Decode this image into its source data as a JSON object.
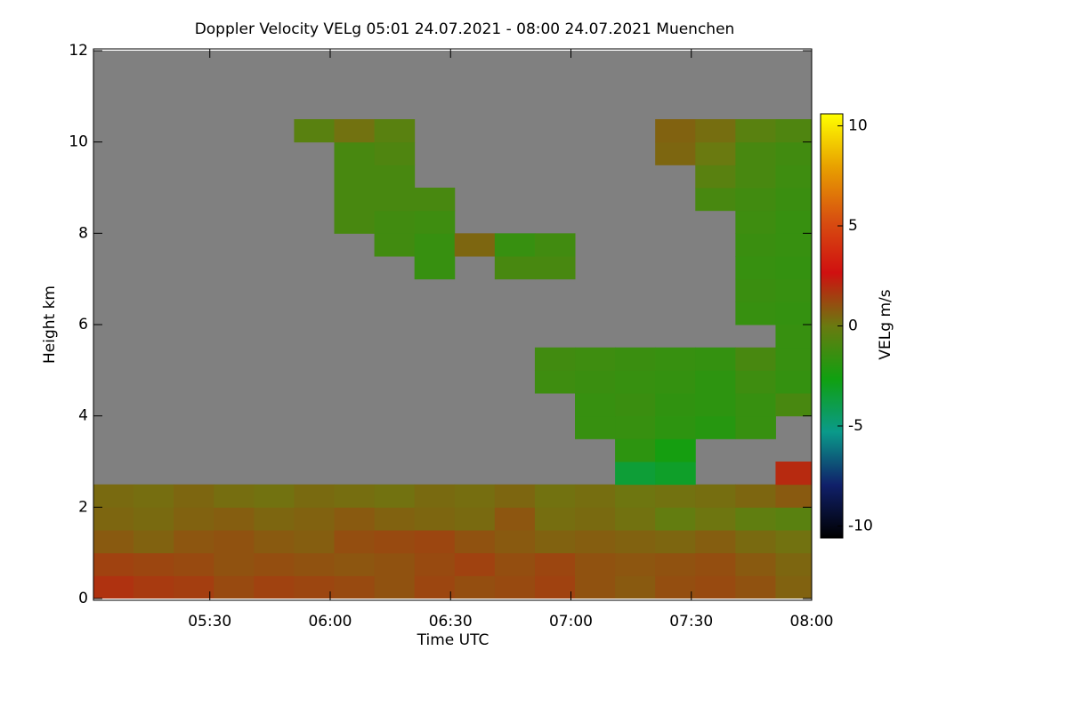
{
  "chart_data": {
    "type": "heatmap",
    "title": "Doppler Velocity VELg   05:01 24.07.2021 - 08:00 24.07.2021 Muenchen",
    "x_label": "Time UTC",
    "y_label": "Height km",
    "colorbar_label": "VELg m/s",
    "xlim": [
      301,
      480
    ],
    "xticks": [
      {
        "value": 330,
        "label": "05:30"
      },
      {
        "value": 360,
        "label": "06:00"
      },
      {
        "value": 390,
        "label": "06:30"
      },
      {
        "value": 420,
        "label": "07:00"
      },
      {
        "value": 450,
        "label": "07:30"
      },
      {
        "value": 480,
        "label": "08:00"
      }
    ],
    "ylim": [
      0,
      12
    ],
    "yticks": [
      0,
      2,
      4,
      6,
      8,
      10,
      12
    ],
    "zlim": [
      -10.6,
      10.6
    ],
    "zticks": [
      -10,
      -5,
      0,
      5,
      10
    ],
    "colormap": [
      "#000000",
      "#10206a",
      "#0a9a8a",
      "#10a010",
      "#6a7a10",
      "#d01010",
      "#d85010",
      "#e8a000",
      "#ffff00"
    ],
    "missing_color": "#808080",
    "x": [
      306,
      316,
      326,
      336,
      346,
      356,
      366,
      376,
      386,
      396,
      406,
      416,
      426,
      436,
      446,
      456,
      466,
      476
    ],
    "y": [
      0.25,
      0.75,
      1.25,
      1.75,
      2.25,
      2.75,
      3.25,
      3.75,
      4.25,
      4.75,
      5.25,
      5.75,
      6.25,
      6.75,
      7.25,
      7.75,
      8.25,
      8.75,
      9.25,
      9.75,
      10.25,
      10.75,
      11.25,
      11.75
    ],
    "z": [
      [
        1.8,
        1.6,
        1.5,
        1.2,
        1.4,
        1.3,
        1.2,
        1.0,
        1.3,
        1.1,
        1.2,
        1.4,
        1.0,
        0.8,
        1.1,
        1.2,
        1.0,
        0.6
      ],
      [
        1.4,
        1.3,
        1.2,
        1.0,
        1.1,
        1.0,
        0.9,
        1.0,
        1.2,
        1.4,
        1.1,
        1.3,
        1.0,
        0.9,
        1.0,
        1.1,
        0.8,
        0.5
      ],
      [
        0.8,
        0.6,
        0.9,
        1.0,
        0.8,
        0.7,
        1.1,
        1.2,
        1.3,
        1.0,
        0.8,
        0.6,
        0.7,
        0.6,
        0.5,
        0.7,
        0.4,
        0.2
      ],
      [
        0.5,
        0.4,
        0.6,
        0.7,
        0.5,
        0.6,
        0.8,
        0.6,
        0.5,
        0.4,
        0.9,
        0.3,
        0.4,
        0.2,
        -0.2,
        0.1,
        -0.3,
        -0.5
      ],
      [
        0.4,
        0.3,
        0.5,
        0.3,
        0.2,
        0.4,
        0.3,
        0.2,
        0.4,
        0.3,
        0.5,
        0.2,
        0.3,
        0.1,
        0.2,
        0.3,
        0.5,
        0.8
      ],
      [
        null,
        null,
        null,
        null,
        null,
        null,
        null,
        null,
        null,
        null,
        null,
        null,
        null,
        -3.5,
        -3.2,
        null,
        null,
        2.0
      ],
      [
        null,
        null,
        null,
        null,
        null,
        null,
        null,
        null,
        null,
        null,
        null,
        null,
        null,
        -1.8,
        -2.5,
        null,
        null,
        null
      ],
      [
        null,
        null,
        null,
        null,
        null,
        null,
        null,
        null,
        null,
        null,
        null,
        null,
        -1.5,
        -1.5,
        -1.8,
        -2.0,
        -1.5,
        null
      ],
      [
        null,
        null,
        null,
        null,
        null,
        null,
        null,
        null,
        null,
        null,
        null,
        null,
        -1.5,
        -1.4,
        -1.7,
        -1.8,
        -1.5,
        -1.0
      ],
      [
        null,
        null,
        null,
        null,
        null,
        null,
        null,
        null,
        null,
        null,
        null,
        -1.3,
        -1.4,
        -1.5,
        -1.6,
        -1.8,
        -1.3,
        -1.6
      ],
      [
        null,
        null,
        null,
        null,
        null,
        null,
        null,
        null,
        null,
        null,
        null,
        -1.2,
        -1.3,
        -1.4,
        -1.5,
        -1.6,
        -1.0,
        -1.5
      ],
      [
        null,
        null,
        null,
        null,
        null,
        null,
        null,
        null,
        null,
        null,
        null,
        null,
        null,
        null,
        null,
        null,
        null,
        -1.5
      ],
      [
        null,
        null,
        null,
        null,
        null,
        null,
        null,
        null,
        null,
        null,
        null,
        null,
        null,
        null,
        null,
        null,
        -1.5,
        -1.6
      ],
      [
        null,
        null,
        null,
        null,
        null,
        null,
        null,
        null,
        null,
        null,
        null,
        null,
        null,
        null,
        null,
        null,
        -1.4,
        -1.5
      ],
      [
        null,
        null,
        null,
        null,
        null,
        null,
        null,
        null,
        -1.5,
        null,
        -1.0,
        -1.0,
        null,
        null,
        null,
        null,
        -1.5,
        -1.6
      ],
      [
        null,
        null,
        null,
        null,
        null,
        null,
        null,
        -1.2,
        -1.5,
        0.5,
        -1.5,
        -1.2,
        null,
        null,
        null,
        null,
        -1.4,
        -1.5
      ],
      [
        null,
        null,
        null,
        null,
        null,
        null,
        -1.0,
        -1.2,
        -1.3,
        null,
        null,
        null,
        null,
        null,
        null,
        null,
        -1.3,
        -1.5
      ],
      [
        null,
        null,
        null,
        null,
        null,
        null,
        -1.0,
        -1.0,
        -1.0,
        null,
        null,
        null,
        null,
        null,
        null,
        -1.0,
        -1.2,
        -1.4
      ],
      [
        null,
        null,
        null,
        null,
        null,
        null,
        -1.0,
        -1.0,
        null,
        null,
        null,
        null,
        null,
        null,
        null,
        -0.5,
        -1.0,
        -1.3
      ],
      [
        null,
        null,
        null,
        null,
        null,
        null,
        -1.0,
        -0.8,
        null,
        null,
        null,
        null,
        null,
        null,
        0.5,
        0.0,
        -1.0,
        -1.2
      ],
      [
        null,
        null,
        null,
        null,
        null,
        -0.5,
        0.2,
        -0.5,
        null,
        null,
        null,
        null,
        null,
        null,
        0.6,
        0.3,
        -0.5,
        -0.8
      ],
      [
        null,
        null,
        null,
        null,
        null,
        null,
        null,
        null,
        null,
        null,
        null,
        null,
        null,
        null,
        null,
        null,
        null,
        null
      ],
      [
        null,
        null,
        null,
        null,
        null,
        null,
        null,
        null,
        null,
        null,
        null,
        null,
        null,
        null,
        null,
        null,
        null,
        null
      ],
      [
        null,
        null,
        null,
        null,
        null,
        null,
        null,
        null,
        null,
        null,
        null,
        null,
        null,
        null,
        null,
        null,
        null,
        null
      ]
    ]
  }
}
